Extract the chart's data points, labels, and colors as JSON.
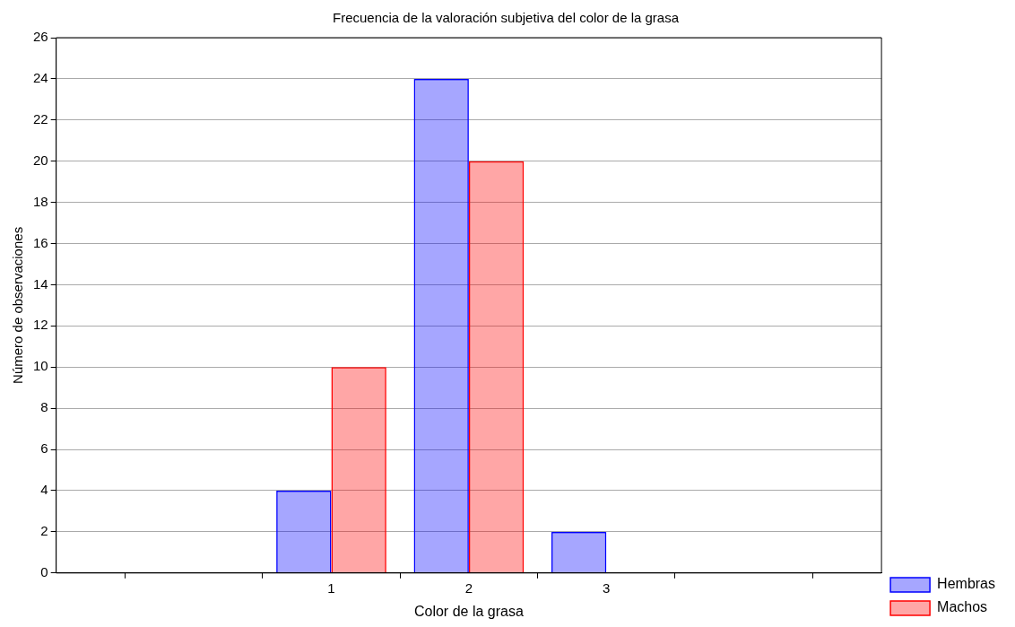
{
  "chart_data": {
    "type": "bar",
    "title": "Frecuencia de la valoración subjetiva del color de la grasa",
    "xlabel": "Color de la grasa",
    "ylabel": "Número de observaciones",
    "categories": [
      null,
      null,
      "1",
      "2",
      "3",
      null,
      null
    ],
    "series": [
      {
        "name": "Hembras",
        "color": "#0000ff",
        "values": [
          null,
          null,
          4,
          24,
          2,
          null,
          null
        ]
      },
      {
        "name": "Machos",
        "color": "#ff0000",
        "values": [
          null,
          null,
          10,
          20,
          0,
          null,
          null
        ]
      }
    ],
    "ylim": [
      0,
      26
    ],
    "yticks": [
      0,
      2,
      4,
      6,
      8,
      10,
      12,
      14,
      16,
      18,
      20,
      22,
      24,
      26
    ],
    "grid": "y",
    "legend": "bottom right"
  }
}
